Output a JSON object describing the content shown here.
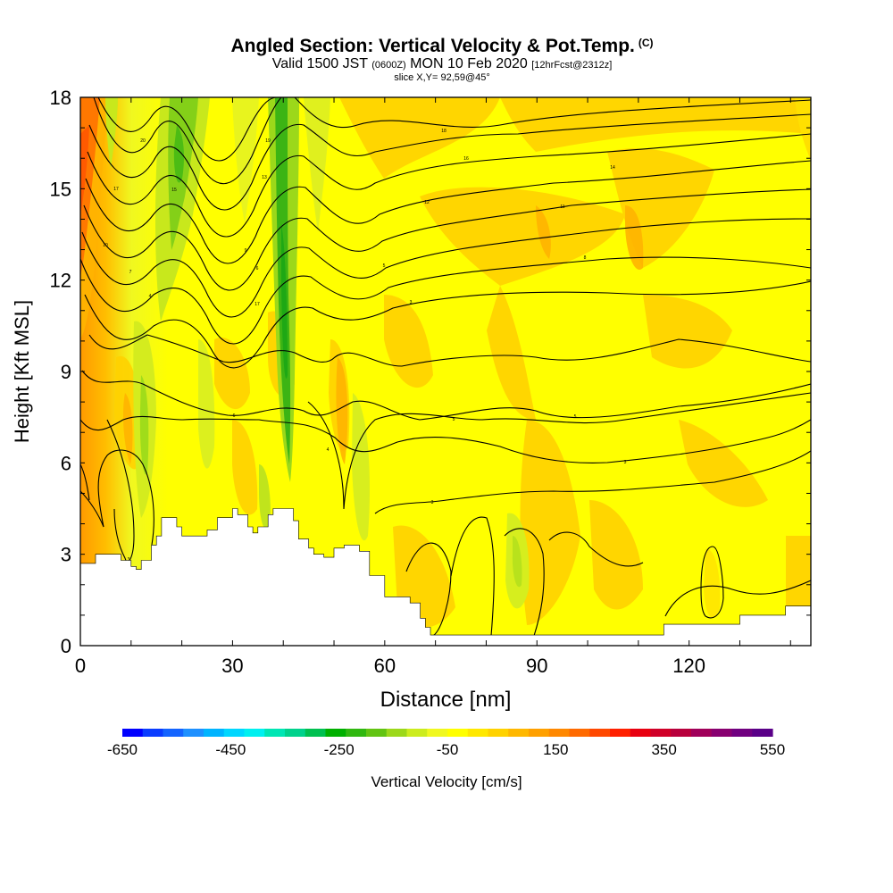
{
  "title": "Angled Section: Vertical Velocity & Pot.Temp.",
  "title_suffix": "(C)",
  "valid_prefix": "Valid 1500 JST",
  "valid_utc": "(0600Z)",
  "valid_date": "MON 10 Feb 2020",
  "valid_fcst": "[12hrFcst@2312z]",
  "slice": "slice X,Y= 92,59@45°",
  "chart_data": {
    "type": "heatmap",
    "xlabel": "Distance [nm]",
    "ylabel": "Height [Kft MSL]",
    "xlim": [
      0,
      144
    ],
    "ylim": [
      0,
      18
    ],
    "x_ticks": [
      "0",
      "30",
      "60",
      "90",
      "120"
    ],
    "y_ticks": [
      "0",
      "3",
      "6",
      "9",
      "12",
      "15",
      "18"
    ],
    "x_tick_values": [
      0,
      30,
      60,
      90,
      120
    ],
    "y_tick_values": [
      0,
      3,
      6,
      9,
      12,
      15,
      18
    ],
    "colorbar": {
      "label": "Vertical Velocity [cm/s]",
      "labels": [
        "-650",
        "-450",
        "-250",
        "-50",
        "150",
        "350",
        "550"
      ],
      "label_values": [
        -650,
        -450,
        -250,
        -50,
        150,
        350,
        550
      ],
      "min": -650,
      "max": 550,
      "colors": [
        "#0000ff",
        "#0a3cff",
        "#1464ff",
        "#1e90ff",
        "#00b4ff",
        "#00d7ff",
        "#00f0f0",
        "#00e6b4",
        "#00d28c",
        "#00c050",
        "#00b000",
        "#30b810",
        "#62c412",
        "#9cd81a",
        "#ccec1e",
        "#f0f820",
        "#ffff00",
        "#ffe800",
        "#ffd200",
        "#ffb800",
        "#ffa000",
        "#ff8800",
        "#ff6a00",
        "#ff4800",
        "#ff2000",
        "#e80010",
        "#d00028",
        "#b8003c",
        "#a0005a",
        "#880070",
        "#700080",
        "#5a0088"
      ]
    },
    "terrain_kft": [
      [
        0,
        2.7
      ],
      [
        2,
        2.7
      ],
      [
        3,
        3.0
      ],
      [
        6,
        3.0
      ],
      [
        8,
        2.8
      ],
      [
        10,
        2.6
      ],
      [
        11,
        2.5
      ],
      [
        12,
        2.8
      ],
      [
        14,
        3.3
      ],
      [
        15,
        3.6
      ],
      [
        16,
        4.2
      ],
      [
        18,
        4.2
      ],
      [
        19,
        3.9
      ],
      [
        20,
        3.6
      ],
      [
        23,
        3.6
      ],
      [
        25,
        3.8
      ],
      [
        27,
        4.2
      ],
      [
        29,
        4.2
      ],
      [
        30,
        4.5
      ],
      [
        31,
        4.3
      ],
      [
        33,
        3.9
      ],
      [
        34,
        3.7
      ],
      [
        35,
        3.9
      ],
      [
        37,
        4.3
      ],
      [
        38,
        4.5
      ],
      [
        41,
        4.5
      ],
      [
        42,
        4.1
      ],
      [
        43,
        3.5
      ],
      [
        45,
        3.2
      ],
      [
        46,
        3.0
      ],
      [
        48,
        2.9
      ],
      [
        50,
        3.2
      ],
      [
        52,
        3.3
      ],
      [
        55,
        3.1
      ],
      [
        57,
        2.3
      ],
      [
        60,
        1.6
      ],
      [
        63,
        1.6
      ],
      [
        65,
        1.4
      ],
      [
        67,
        0.9
      ],
      [
        68,
        0.6
      ],
      [
        69,
        0.35
      ],
      [
        90,
        0.35
      ],
      [
        100,
        0.35
      ],
      [
        110,
        0.35
      ],
      [
        114,
        0.35
      ],
      [
        115,
        0.7
      ],
      [
        129,
        0.7
      ],
      [
        130,
        1.0
      ],
      [
        138,
        1.0
      ],
      [
        139,
        1.3
      ],
      [
        144,
        1.3
      ]
    ],
    "contour_labels": [
      "20",
      "19",
      "18",
      "17",
      "16",
      "15",
      "14",
      "13",
      "12",
      "11",
      "10",
      "9",
      "8",
      "7",
      "6",
      "5",
      "4",
      "3"
    ]
  }
}
